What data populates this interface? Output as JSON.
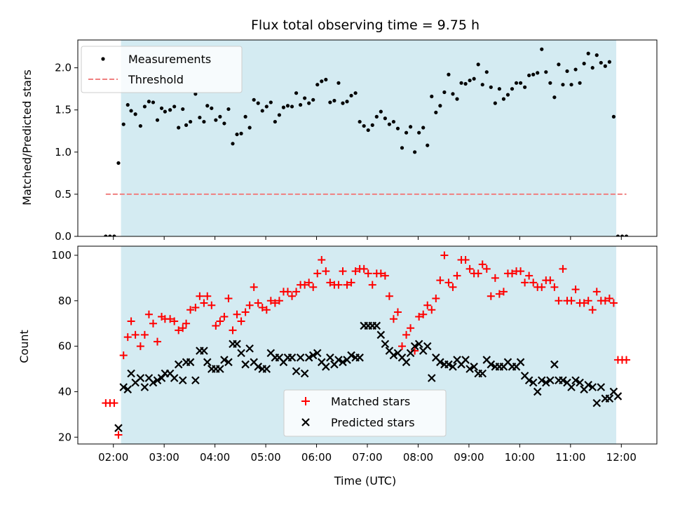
{
  "chart_data": [
    {
      "type": "scatter",
      "title": "Flux total observing time = 9.75 h",
      "xlabel": "",
      "ylabel": "Matched/Predicted stars",
      "xlim": [
        "01:18",
        "12:42"
      ],
      "ylim": [
        0,
        2.33
      ],
      "yticks": [
        "0.0",
        "0.5",
        "1.0",
        "1.5",
        "2.0"
      ],
      "shaded_interval": [
        "02:09",
        "11:54"
      ],
      "shade_color": "#add8e6",
      "legend_position": "top-left",
      "series": [
        {
          "name": "Measurements",
          "marker": "dot",
          "color": "#000000",
          "x": [
            "01:51",
            "01:56",
            "02:01",
            "02:06",
            "02:12",
            "02:17",
            "02:21",
            "02:26",
            "02:32",
            "02:37",
            "02:42",
            "02:47",
            "02:52",
            "02:57",
            "03:01",
            "03:07",
            "03:12",
            "03:17",
            "03:22",
            "03:26",
            "03:31",
            "03:37",
            "03:42",
            "03:47",
            "03:51",
            "03:56",
            "04:01",
            "04:06",
            "04:11",
            "04:16",
            "04:21",
            "04:26",
            "04:31",
            "04:36",
            "04:41",
            "04:46",
            "04:51",
            "04:56",
            "05:01",
            "05:06",
            "05:11",
            "05:16",
            "05:21",
            "05:26",
            "05:31",
            "05:36",
            "05:41",
            "05:46",
            "05:51",
            "05:56",
            "06:01",
            "06:06",
            "06:11",
            "06:16",
            "06:21",
            "06:26",
            "06:31",
            "06:36",
            "06:41",
            "06:46",
            "06:51",
            "06:56",
            "07:01",
            "07:06",
            "07:11",
            "07:16",
            "07:21",
            "07:26",
            "07:31",
            "07:36",
            "07:41",
            "07:46",
            "07:51",
            "07:56",
            "08:01",
            "08:06",
            "08:11",
            "08:16",
            "08:21",
            "08:26",
            "08:31",
            "08:36",
            "08:41",
            "08:46",
            "08:51",
            "08:56",
            "09:01",
            "09:06",
            "09:11",
            "09:16",
            "09:21",
            "09:26",
            "09:31",
            "09:36",
            "09:41",
            "09:46",
            "09:51",
            "09:56",
            "10:01",
            "10:06",
            "10:11",
            "10:16",
            "10:21",
            "10:26",
            "10:31",
            "10:36",
            "10:41",
            "10:46",
            "10:51",
            "10:56",
            "11:01",
            "11:06",
            "11:11",
            "11:16",
            "11:21",
            "11:26",
            "11:31",
            "11:36",
            "11:41",
            "11:46",
            "11:51",
            "11:56",
            "12:01",
            "12:06"
          ],
          "y": [
            0,
            0,
            0,
            0.87,
            1.33,
            1.56,
            1.49,
            1.45,
            1.31,
            1.54,
            1.6,
            1.59,
            1.38,
            1.52,
            1.48,
            1.5,
            1.54,
            1.29,
            1.51,
            1.32,
            1.36,
            1.69,
            1.41,
            1.36,
            1.55,
            1.52,
            1.38,
            1.42,
            1.34,
            1.51,
            1.1,
            1.21,
            1.22,
            1.42,
            1.29,
            1.62,
            1.58,
            1.49,
            1.54,
            1.59,
            1.36,
            1.44,
            1.53,
            1.55,
            1.54,
            1.7,
            1.56,
            1.64,
            1.58,
            1.62,
            1.8,
            1.84,
            1.86,
            1.59,
            1.61,
            1.82,
            1.58,
            1.6,
            1.67,
            1.7,
            1.36,
            1.31,
            1.26,
            1.32,
            1.42,
            1.48,
            1.4,
            1.33,
            1.36,
            1.28,
            1.05,
            1.23,
            1.3,
            1.0,
            1.23,
            1.29,
            1.08,
            1.66,
            1.47,
            1.55,
            1.71,
            1.92,
            1.69,
            1.63,
            1.82,
            1.81,
            1.85,
            1.87,
            2.04,
            1.8,
            1.95,
            1.77,
            1.58,
            1.75,
            1.63,
            1.68,
            1.75,
            1.82,
            1.82,
            1.77,
            1.91,
            1.92,
            1.94,
            2.22,
            1.95,
            1.82,
            1.65,
            2.04,
            1.8,
            1.96,
            1.8,
            1.98,
            1.82,
            2.05,
            2.17,
            2.0,
            2.15,
            2.06,
            2.02,
            2.07,
            1.42,
            0,
            0,
            0
          ]
        },
        {
          "name": "Threshold",
          "marker": "dashed-line",
          "color": "#f08080",
          "x": [
            "01:51",
            "12:06"
          ],
          "y": [
            0.5,
            0.5
          ]
        }
      ]
    },
    {
      "type": "scatter",
      "title": "",
      "xlabel": "Time (UTC)",
      "ylabel": "Count",
      "xlim": [
        "01:18",
        "12:42"
      ],
      "ylim": [
        17,
        104
      ],
      "yticks": [
        "20",
        "40",
        "60",
        "80",
        "100"
      ],
      "xticks": [
        "02:00",
        "03:00",
        "04:00",
        "05:00",
        "06:00",
        "07:00",
        "08:00",
        "09:00",
        "10:00",
        "11:00",
        "12:00"
      ],
      "shaded_interval": [
        "02:09",
        "11:54"
      ],
      "shade_color": "#add8e6",
      "legend_position": "bottom-center",
      "series": [
        {
          "name": "Matched stars",
          "marker": "plus",
          "color": "#ff0000",
          "x": [
            "01:51",
            "01:56",
            "02:01",
            "02:06",
            "02:12",
            "02:17",
            "02:21",
            "02:26",
            "02:32",
            "02:37",
            "02:42",
            "02:47",
            "02:52",
            "02:57",
            "03:01",
            "03:07",
            "03:12",
            "03:17",
            "03:22",
            "03:26",
            "03:31",
            "03:37",
            "03:42",
            "03:47",
            "03:51",
            "03:56",
            "04:01",
            "04:06",
            "04:11",
            "04:16",
            "04:21",
            "04:26",
            "04:31",
            "04:36",
            "04:41",
            "04:46",
            "04:51",
            "04:56",
            "05:01",
            "05:06",
            "05:11",
            "05:16",
            "05:21",
            "05:26",
            "05:31",
            "05:36",
            "05:41",
            "05:46",
            "05:51",
            "05:56",
            "06:01",
            "06:06",
            "06:11",
            "06:16",
            "06:21",
            "06:26",
            "06:31",
            "06:36",
            "06:41",
            "06:46",
            "06:51",
            "06:56",
            "07:01",
            "07:06",
            "07:11",
            "07:16",
            "07:21",
            "07:26",
            "07:31",
            "07:36",
            "07:41",
            "07:46",
            "07:51",
            "07:56",
            "08:01",
            "08:06",
            "08:11",
            "08:16",
            "08:21",
            "08:26",
            "08:31",
            "08:36",
            "08:41",
            "08:46",
            "08:51",
            "08:56",
            "09:01",
            "09:06",
            "09:11",
            "09:16",
            "09:21",
            "09:26",
            "09:31",
            "09:36",
            "09:41",
            "09:46",
            "09:51",
            "09:56",
            "10:01",
            "10:06",
            "10:11",
            "10:16",
            "10:21",
            "10:26",
            "10:31",
            "10:36",
            "10:41",
            "10:46",
            "10:51",
            "10:56",
            "11:01",
            "11:06",
            "11:11",
            "11:16",
            "11:21",
            "11:26",
            "11:31",
            "11:36",
            "11:41",
            "11:46",
            "11:51",
            "11:56",
            "12:01",
            "12:06"
          ],
          "y": [
            35,
            35,
            35,
            21,
            56,
            64,
            71,
            65,
            60,
            65,
            74,
            70,
            62,
            73,
            72,
            72,
            71,
            67,
            68,
            70,
            76,
            77,
            82,
            79,
            82,
            78,
            69,
            71,
            73,
            81,
            67,
            74,
            71,
            75,
            78,
            86,
            79,
            77,
            76,
            80,
            79,
            80,
            84,
            84,
            82,
            84,
            87,
            87,
            88,
            86,
            92,
            98,
            93,
            88,
            87,
            87,
            93,
            87,
            88,
            93,
            94,
            94,
            92,
            87,
            92,
            92,
            91,
            82,
            72,
            75,
            60,
            65,
            68,
            58,
            73,
            74,
            78,
            76,
            81,
            89,
            100,
            88,
            86,
            91,
            98,
            98,
            94,
            92,
            92,
            96,
            94,
            82,
            90,
            83,
            84,
            92,
            92,
            93,
            93,
            88,
            91,
            88,
            86,
            86,
            89,
            89,
            86,
            80,
            94,
            80,
            80,
            85,
            79,
            79,
            80,
            76,
            84,
            80,
            80,
            81,
            79,
            54,
            54,
            54
          ]
        },
        {
          "name": "Predicted stars",
          "marker": "x",
          "color": "#000000",
          "x": [
            "02:06",
            "02:12",
            "02:17",
            "02:21",
            "02:26",
            "02:32",
            "02:37",
            "02:42",
            "02:47",
            "02:52",
            "02:57",
            "03:01",
            "03:07",
            "03:12",
            "03:17",
            "03:22",
            "03:26",
            "03:31",
            "03:37",
            "03:42",
            "03:47",
            "03:51",
            "03:56",
            "04:01",
            "04:06",
            "04:11",
            "04:16",
            "04:21",
            "04:26",
            "04:31",
            "04:36",
            "04:41",
            "04:46",
            "04:51",
            "04:56",
            "05:01",
            "05:06",
            "05:11",
            "05:16",
            "05:21",
            "05:26",
            "05:31",
            "05:36",
            "05:41",
            "05:46",
            "05:51",
            "05:56",
            "06:01",
            "06:06",
            "06:11",
            "06:16",
            "06:21",
            "06:26",
            "06:31",
            "06:36",
            "06:41",
            "06:46",
            "06:51",
            "06:56",
            "07:01",
            "07:06",
            "07:11",
            "07:16",
            "07:21",
            "07:26",
            "07:31",
            "07:36",
            "07:41",
            "07:46",
            "07:51",
            "07:56",
            "08:01",
            "08:06",
            "08:11",
            "08:16",
            "08:21",
            "08:26",
            "08:31",
            "08:36",
            "08:41",
            "08:46",
            "08:51",
            "08:56",
            "09:01",
            "09:06",
            "09:11",
            "09:16",
            "09:21",
            "09:26",
            "09:31",
            "09:36",
            "09:41",
            "09:46",
            "09:51",
            "09:56",
            "10:01",
            "10:06",
            "10:11",
            "10:16",
            "10:21",
            "10:26",
            "10:31",
            "10:36",
            "10:41",
            "10:46",
            "10:51",
            "10:56",
            "11:01",
            "11:06",
            "11:11",
            "11:16",
            "11:21",
            "11:26",
            "11:31",
            "11:36",
            "11:41",
            "11:46",
            "11:51",
            "11:56"
          ],
          "y": [
            24,
            42,
            41,
            48,
            44,
            46,
            42,
            46,
            44,
            45,
            46,
            48,
            48,
            46,
            52,
            45,
            53,
            53,
            45,
            58,
            58,
            53,
            50,
            50,
            50,
            54,
            53,
            61,
            61,
            57,
            52,
            59,
            53,
            51,
            50,
            50,
            57,
            55,
            55,
            53,
            55,
            55,
            49,
            55,
            48,
            55,
            56,
            57,
            53,
            51,
            55,
            52,
            54,
            53,
            54,
            56,
            55,
            55,
            69,
            69,
            69,
            69,
            65,
            61,
            58,
            56,
            57,
            55,
            53,
            57,
            60,
            61,
            58,
            60,
            46,
            55,
            53,
            52,
            52,
            51,
            54,
            52,
            54,
            50,
            51,
            48,
            48,
            54,
            52,
            51,
            51,
            51,
            53,
            51,
            51,
            53,
            47,
            45,
            44,
            40,
            45,
            44,
            45,
            52,
            45,
            45,
            44,
            42,
            45,
            44,
            41,
            43,
            42,
            35,
            42,
            37,
            37,
            40,
            38
          ]
        }
      ]
    }
  ]
}
